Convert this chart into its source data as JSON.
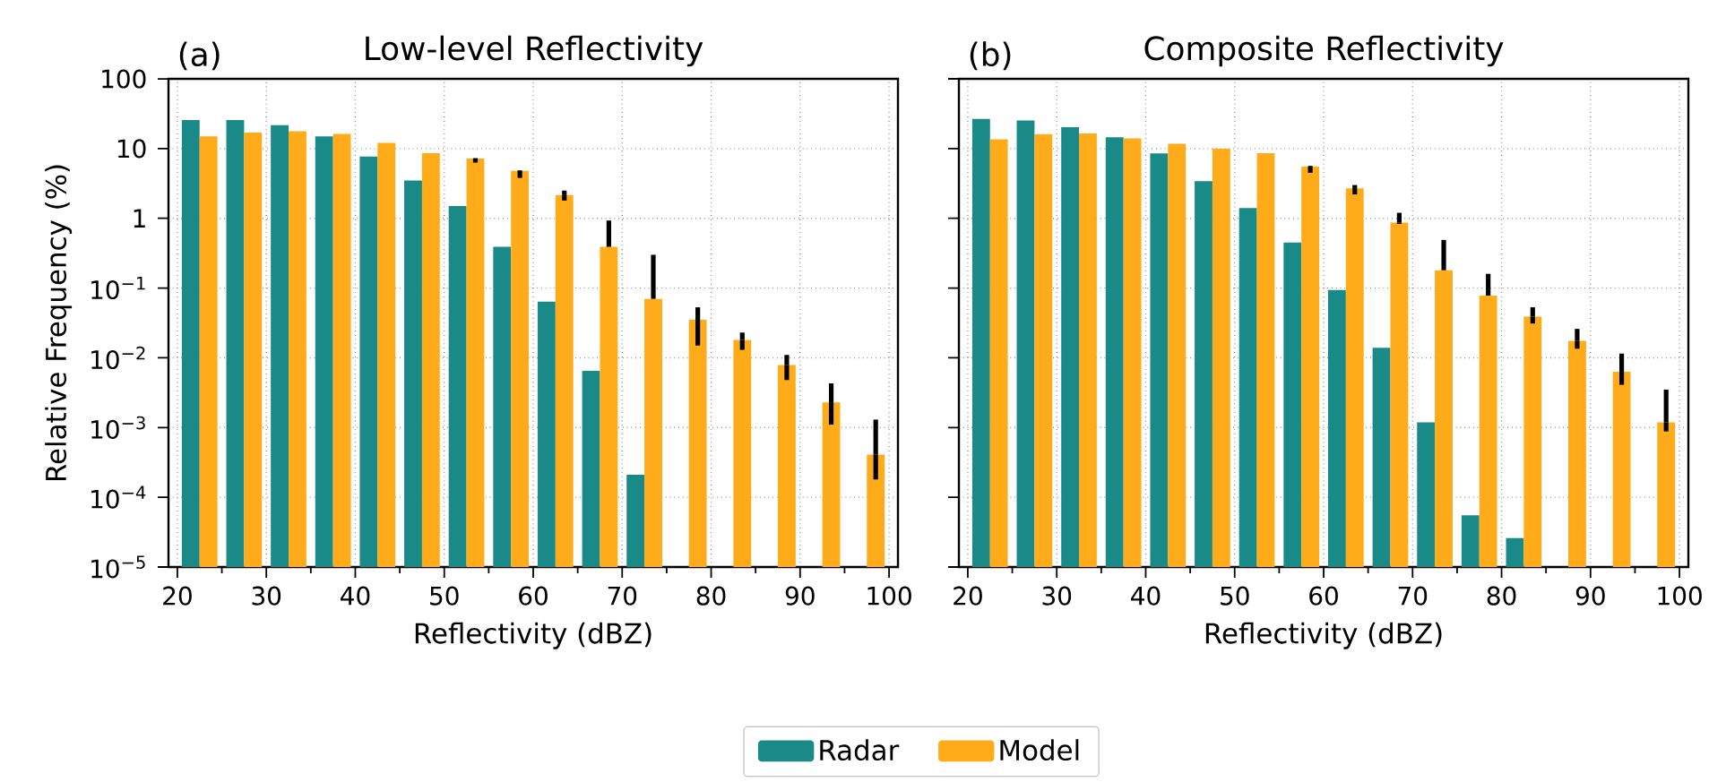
{
  "chart_data": [
    {
      "type": "bar",
      "title": "Low-level Reflectivity",
      "annotations": [
        "(a)"
      ],
      "xlabel": "Reflectivity (dBZ)",
      "ylabel": "Relative Frequency (%)",
      "log": "y",
      "grid": true,
      "legend": "bottom",
      "xlim": [
        19,
        101
      ],
      "xticks": [
        20,
        30,
        40,
        50,
        60,
        70,
        80,
        90,
        100
      ],
      "ylim": [
        1e-05,
        100
      ],
      "yticks": [
        {
          "value": 1e-05,
          "label": "10$^{−5}$"
        },
        {
          "value": 0.0001,
          "label": "10$^{−4}$"
        },
        {
          "value": 0.001,
          "label": "10$^{−3}$"
        },
        {
          "value": 0.01,
          "label": "10$^{−2}$"
        },
        {
          "value": 0.1,
          "label": "10$^{−1}$"
        },
        1,
        10,
        100
      ],
      "series": [
        {
          "name": "Radar",
          "color": "#1a8a88",
          "x": [
            21.5,
            26.5,
            31.5,
            36.5,
            41.5,
            46.5,
            51.5,
            56.5,
            61.5,
            66.5,
            71.5
          ],
          "values": [
            25.6,
            25.6,
            21.7,
            15.0,
            7.7,
            3.5,
            1.5,
            0.39,
            0.064,
            0.0065,
            0.00021
          ]
        },
        {
          "name": "Model",
          "color": "#ffab1a",
          "x": [
            23.5,
            28.5,
            33.5,
            38.5,
            43.5,
            48.5,
            53.5,
            58.5,
            63.5,
            68.5,
            73.5,
            78.5,
            83.5,
            88.5,
            93.5,
            98.5
          ],
          "values": [
            15.0,
            17.0,
            17.7,
            16.2,
            12.1,
            8.6,
            7.2,
            4.8,
            2.15,
            0.39,
            0.07,
            0.035,
            0.018,
            0.0079,
            0.0023,
            0.00041
          ],
          "errors": [
            null,
            null,
            null,
            null,
            null,
            null,
            [
              6.3,
              7.3
            ],
            [
              3.8,
              4.9
            ],
            [
              1.8,
              2.5
            ],
            [
              0.39,
              0.93
            ],
            [
              0.07,
              0.3
            ],
            [
              0.015,
              0.053
            ],
            [
              0.013,
              0.023
            ],
            [
              0.0048,
              0.011
            ],
            [
              0.0011,
              0.0043
            ],
            [
              0.00018,
              0.0013
            ]
          ]
        }
      ]
    },
    {
      "type": "bar",
      "title": "Composite Reflectivity",
      "annotations": [
        "(b)"
      ],
      "xlabel": "Reflectivity (dBZ)",
      "log": "y",
      "grid": true,
      "tick_labels": "x",
      "xlim": [
        19,
        101
      ],
      "xticks": [
        20,
        30,
        40,
        50,
        60,
        70,
        80,
        90,
        100
      ],
      "ylim": [
        1e-05,
        100
      ],
      "yticks": [
        {
          "value": 1e-05,
          "label": null
        },
        {
          "value": 0.0001,
          "label": null
        },
        {
          "value": 0.001,
          "label": null
        },
        {
          "value": 0.01,
          "label": null
        },
        {
          "value": 0.1,
          "label": null
        },
        {
          "value": 1,
          "label": null
        },
        {
          "value": 10,
          "label": null
        },
        {
          "value": 100,
          "label": null
        }
      ],
      "series": [
        {
          "color": "#1a8a88",
          "x": [
            21.5,
            26.5,
            31.5,
            36.5,
            41.5,
            46.5,
            51.5,
            56.5,
            61.5,
            66.5,
            71.5,
            76.5,
            81.5
          ],
          "values": [
            26.6,
            25.3,
            20.3,
            14.5,
            8.5,
            3.4,
            1.4,
            0.45,
            0.094,
            0.0139,
            0.00119,
            5.5e-05,
            2.6e-05
          ]
        },
        {
          "color": "#ffab1a",
          "x": [
            23.5,
            28.5,
            33.5,
            38.5,
            43.5,
            48.5,
            53.5,
            58.5,
            63.5,
            68.5,
            73.5,
            78.5,
            83.5,
            88.5,
            93.5,
            98.5
          ],
          "values": [
            13.6,
            16.1,
            16.5,
            14.0,
            11.7,
            10.0,
            8.6,
            5.5,
            2.7,
            0.87,
            0.18,
            0.078,
            0.039,
            0.0175,
            0.0063,
            0.00119
          ],
          "errors": [
            null,
            null,
            null,
            null,
            null,
            null,
            null,
            [
              4.5,
              5.65
            ],
            [
              2.2,
              3.0
            ],
            [
              0.83,
              1.2
            ],
            [
              0.18,
              0.49
            ],
            [
              0.078,
              0.16
            ],
            [
              0.031,
              0.053
            ],
            [
              0.0135,
              0.026
            ],
            [
              0.0041,
              0.0115
            ],
            [
              0.00088,
              0.0035
            ]
          ]
        }
      ]
    }
  ]
}
